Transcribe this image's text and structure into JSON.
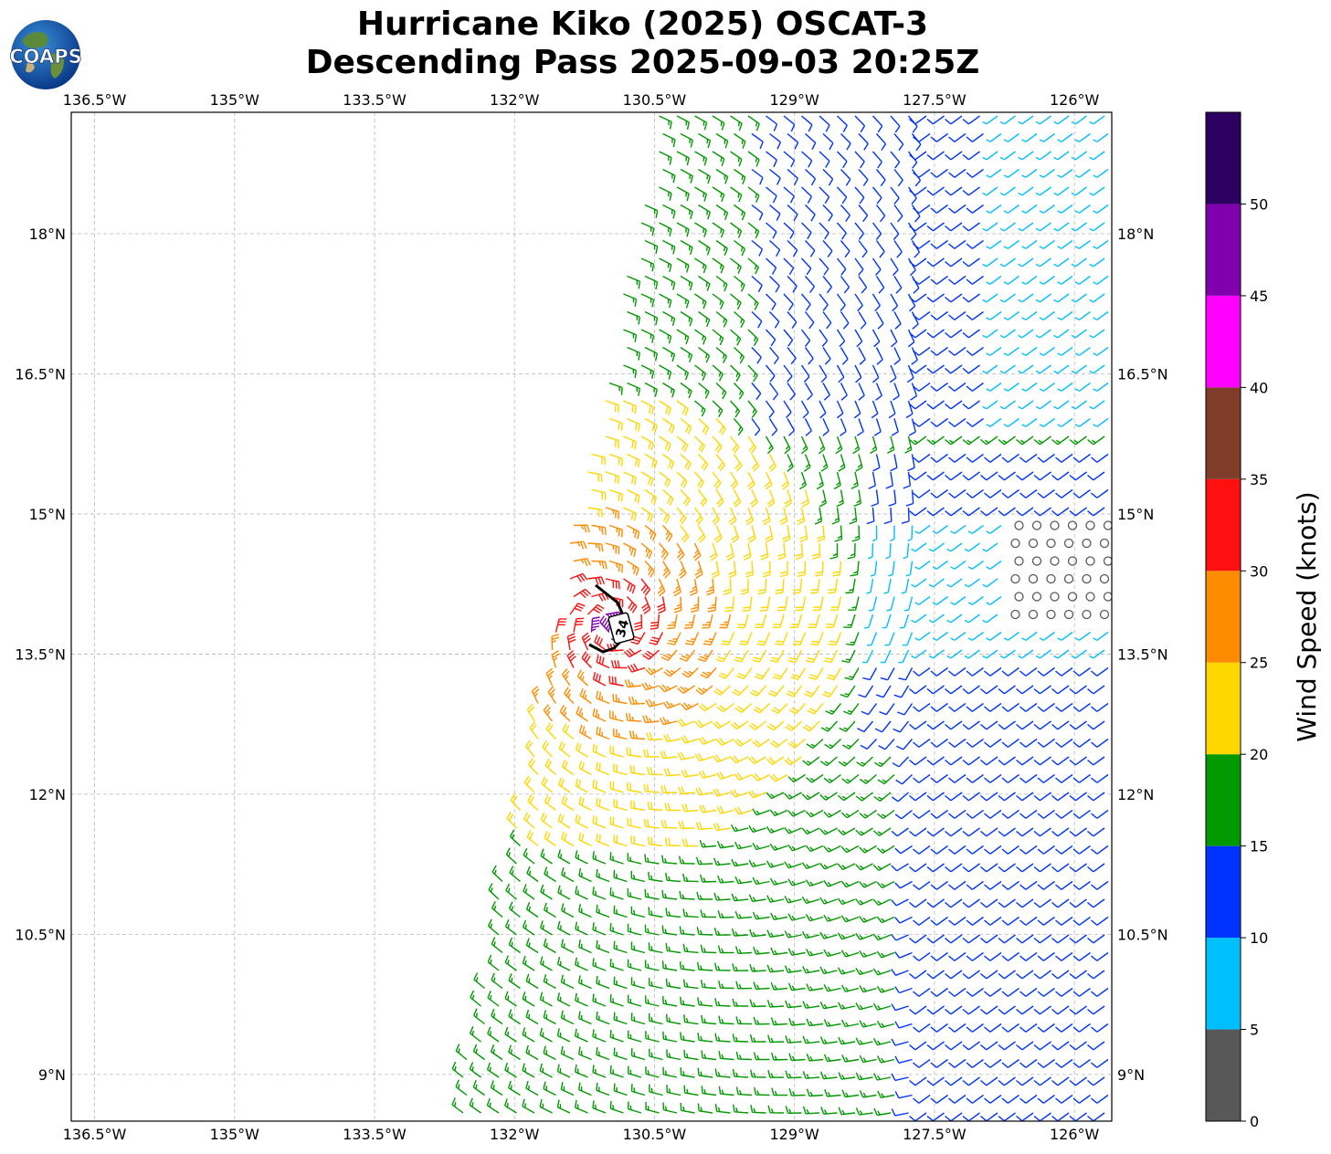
{
  "header": {
    "title_line1": "Hurricane Kiko (2025) OSCAT-3",
    "title_line2": "Descending Pass 2025-09-03 20:25Z",
    "logo_text": "COAPS"
  },
  "map": {
    "lon_ticks": [
      "136.5°W",
      "135°W",
      "133.5°W",
      "132°W",
      "130.5°W",
      "129°W",
      "127.5°W",
      "126°W"
    ],
    "lat_ticks": [
      "18°N",
      "16.5°N",
      "15°N",
      "13.5°N",
      "12°N",
      "10.5°N",
      "9°N"
    ],
    "lon_values": [
      -136.5,
      -135,
      -133.5,
      -132,
      -130.5,
      -129,
      -127.5,
      -126
    ],
    "lat_values": [
      18,
      16.5,
      15,
      13.5,
      12,
      10.5,
      9
    ],
    "lon_range": [
      -136.75,
      -125.6
    ],
    "lat_range": [
      8.5,
      19.3
    ],
    "storm_center": {
      "lon": -130.95,
      "lat": 13.8
    },
    "wind_radius_label": "34",
    "gridlines": true
  },
  "colorbar": {
    "label": "Wind Speed (knots)",
    "ticks": [
      "0",
      "5",
      "10",
      "15",
      "20",
      "25",
      "30",
      "35",
      "40",
      "45",
      "50"
    ],
    "bins": [
      {
        "min": 0,
        "max": 5,
        "color": "#585858"
      },
      {
        "min": 5,
        "max": 10,
        "color": "#00bfff"
      },
      {
        "min": 10,
        "max": 15,
        "color": "#0033ff"
      },
      {
        "min": 15,
        "max": 20,
        "color": "#009900"
      },
      {
        "min": 20,
        "max": 25,
        "color": "#ffd700"
      },
      {
        "min": 25,
        "max": 30,
        "color": "#ff8c00"
      },
      {
        "min": 30,
        "max": 35,
        "color": "#ff1010"
      },
      {
        "min": 35,
        "max": 40,
        "color": "#7f3c28"
      },
      {
        "min": 40,
        "max": 45,
        "color": "#ff00ff"
      },
      {
        "min": 45,
        "max": 50,
        "color": "#8000b0"
      },
      {
        "min": 50,
        "max": 55,
        "color": "#2c0060"
      }
    ]
  }
}
